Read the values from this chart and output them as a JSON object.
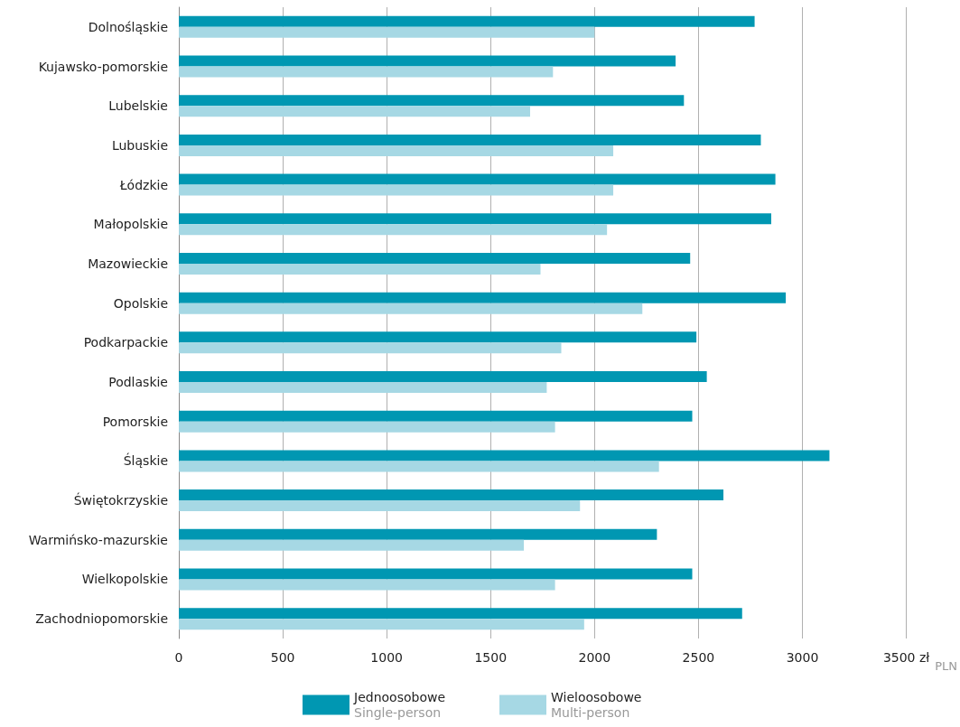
{
  "chart_data": {
    "type": "bar",
    "orientation": "horizontal",
    "categories": [
      "Dolnośląskie",
      "Kujawsko-pomorskie",
      "Lubelskie",
      "Lubuskie",
      "Łódzkie",
      "Małopolskie",
      "Mazowieckie",
      "Opolskie",
      "Podkarpackie",
      "Podlaskie",
      "Pomorskie",
      "Śląskie",
      "Świętokrzyskie",
      "Warmińsko-mazurskie",
      "Wielkopolskie",
      "Zachodniopomorskie"
    ],
    "series": [
      {
        "name": "Jednoosobowe\nSingle-person",
        "color": "#0097b2",
        "values": [
          2770,
          2390,
          2430,
          2800,
          2870,
          2850,
          2460,
          2920,
          2490,
          2540,
          2470,
          3130,
          2620,
          2300,
          2470,
          2710
        ]
      },
      {
        "name": "Wieloosobowe\nMulti-person",
        "color": "#a6d8e4",
        "values": [
          2000,
          1800,
          1690,
          2090,
          2090,
          2060,
          1740,
          2230,
          1840,
          1770,
          1810,
          2310,
          1930,
          1660,
          1810,
          1950
        ]
      }
    ],
    "xlim": [
      0,
      3500
    ],
    "xticks": [
      0,
      500,
      1000,
      1500,
      2000,
      2500,
      3000,
      {
        "value": 3500,
        "label": "3500 zł"
      }
    ],
    "xlabel": "PLN",
    "grid": "x",
    "legend": "bottom"
  }
}
